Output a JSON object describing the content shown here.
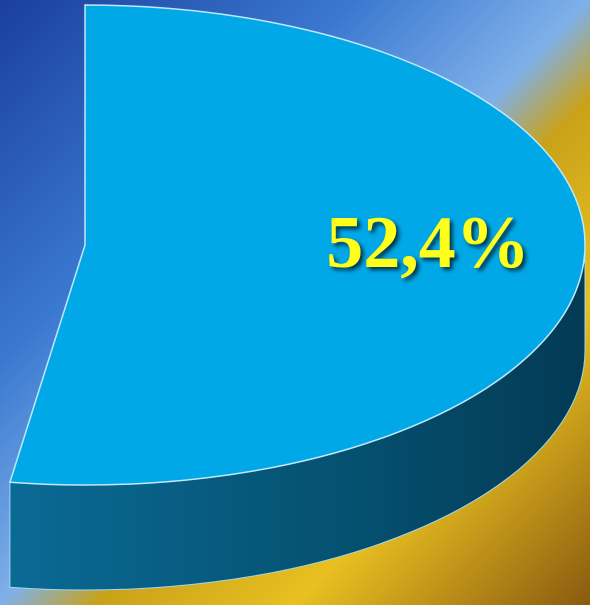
{
  "chart_data": {
    "type": "pie",
    "values": [
      52.4
    ],
    "value_labels": [
      "52,4%"
    ],
    "color": "#00a8e8",
    "label_color": "#ffff1a"
  }
}
